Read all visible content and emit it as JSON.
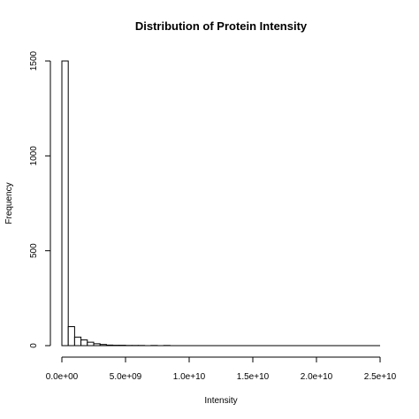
{
  "chart_data": {
    "type": "bar",
    "title": "Distribution of Protein Intensity",
    "xlabel": "Intensity",
    "ylabel": "Frequency",
    "xlim": [
      0,
      25000000000
    ],
    "ylim": [
      0,
      1500
    ],
    "bin_width": 500000000,
    "bins": [
      {
        "x0": 0,
        "x1": 500000000,
        "count": 1500
      },
      {
        "x0": 500000000,
        "x1": 1000000000,
        "count": 100
      },
      {
        "x0": 1000000000,
        "x1": 1500000000,
        "count": 45
      },
      {
        "x0": 1500000000,
        "x1": 2000000000,
        "count": 30
      },
      {
        "x0": 2000000000,
        "x1": 2500000000,
        "count": 18
      },
      {
        "x0": 2500000000,
        "x1": 3000000000,
        "count": 10
      },
      {
        "x0": 3000000000,
        "x1": 3500000000,
        "count": 6
      },
      {
        "x0": 3500000000,
        "x1": 4000000000,
        "count": 3
      },
      {
        "x0": 4000000000,
        "x1": 4500000000,
        "count": 2
      },
      {
        "x0": 4500000000,
        "x1": 5000000000,
        "count": 2
      },
      {
        "x0": 5000000000,
        "x1": 5500000000,
        "count": 1
      },
      {
        "x0": 5500000000,
        "x1": 6000000000,
        "count": 1
      },
      {
        "x0": 6000000000,
        "x1": 6500000000,
        "count": 1
      },
      {
        "x0": 6500000000,
        "x1": 7000000000,
        "count": 0
      },
      {
        "x0": 7000000000,
        "x1": 7500000000,
        "count": 1
      },
      {
        "x0": 7500000000,
        "x1": 8000000000,
        "count": 0
      },
      {
        "x0": 8000000000,
        "x1": 8500000000,
        "count": 1
      }
    ],
    "x_ticks": [
      {
        "value": 0,
        "label": "0.0e+00"
      },
      {
        "value": 5000000000,
        "label": "5.0e+09"
      },
      {
        "value": 10000000000,
        "label": "1.0e+10"
      },
      {
        "value": 15000000000,
        "label": "1.5e+10"
      },
      {
        "value": 20000000000,
        "label": "2.0e+10"
      },
      {
        "value": 25000000000,
        "label": "2.5e+10"
      }
    ],
    "y_ticks": [
      {
        "value": 0,
        "label": "0"
      },
      {
        "value": 500,
        "label": "500"
      },
      {
        "value": 1000,
        "label": "1000"
      },
      {
        "value": 1500,
        "label": "1500"
      }
    ],
    "grid": false,
    "bar_fill": "#ffffff",
    "bar_stroke": "#000000"
  }
}
